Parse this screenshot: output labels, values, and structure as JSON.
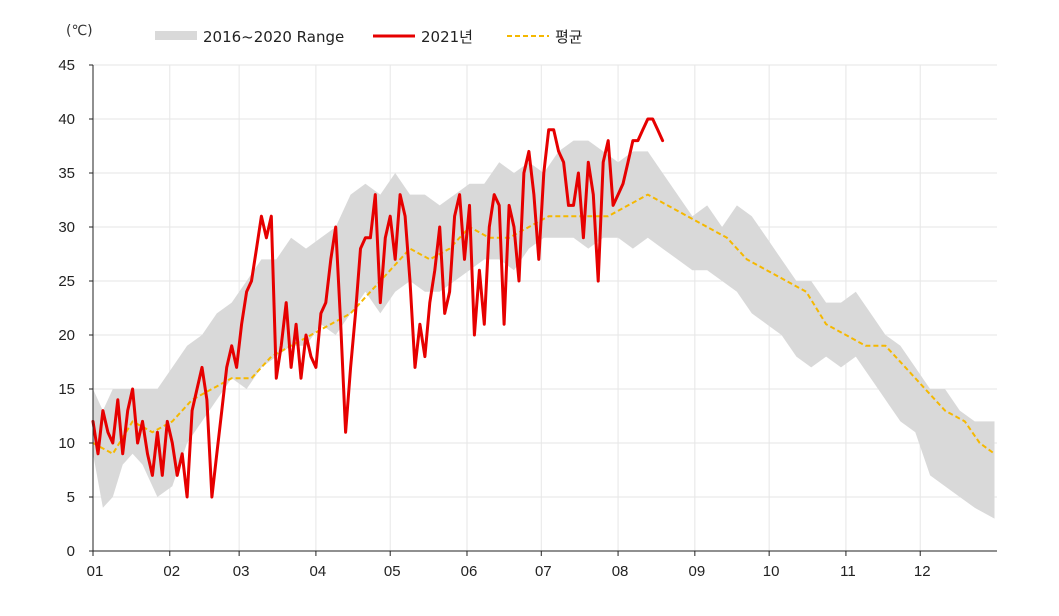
{
  "chart_data": {
    "type": "line",
    "unit": "(℃)",
    "grid": true,
    "legend_position": "top-left",
    "x_tick_labels": [
      "01",
      "02",
      "03",
      "04",
      "05",
      "06",
      "07",
      "08",
      "09",
      "10",
      "11",
      "12"
    ],
    "y_ticks": [
      0,
      5,
      10,
      15,
      20,
      25,
      30,
      35,
      40,
      45
    ],
    "ylim": [
      0,
      45
    ],
    "xlim": [
      0,
      365
    ],
    "colors": {
      "range": "#d9d9d9",
      "actual": "#e60000",
      "average": "#f5b800",
      "grid": "#e6e6e6",
      "axis": "#222222"
    },
    "series": [
      {
        "name": "2016~2020 Range",
        "kind": "band",
        "x": [
          0,
          4,
          8,
          12,
          16,
          20,
          26,
          32,
          38,
          44,
          50,
          56,
          62,
          68,
          74,
          80,
          86,
          92,
          98,
          104,
          110,
          116,
          122,
          128,
          134,
          140,
          146,
          152,
          158,
          164,
          170,
          176,
          182,
          188,
          194,
          200,
          206,
          212,
          218,
          224,
          230,
          236,
          242,
          248,
          254,
          260,
          266,
          272,
          278,
          284,
          290,
          296,
          302,
          308,
          314,
          320,
          326,
          332,
          338,
          344,
          350,
          356,
          364
        ],
        "low": [
          9,
          4,
          5,
          8,
          9,
          8,
          5,
          6,
          10,
          12,
          14,
          16,
          15,
          17,
          18,
          19,
          19,
          21,
          20,
          22,
          24,
          22,
          24,
          25,
          24,
          24,
          25,
          26,
          27,
          27,
          26,
          28,
          29,
          29,
          29,
          28,
          29,
          29,
          28,
          29,
          28,
          27,
          26,
          26,
          25,
          24,
          22,
          21,
          20,
          18,
          17,
          18,
          17,
          18,
          16,
          14,
          12,
          11,
          7,
          6,
          5,
          4,
          3
        ],
        "high": [
          15,
          13,
          15,
          15,
          15,
          15,
          15,
          17,
          19,
          20,
          22,
          23,
          25,
          27,
          27,
          29,
          28,
          29,
          30,
          33,
          34,
          33,
          35,
          33,
          33,
          32,
          33,
          34,
          34,
          36,
          35,
          36,
          35,
          37,
          38,
          38,
          37,
          36,
          37,
          37,
          35,
          33,
          31,
          32,
          30,
          32,
          31,
          29,
          27,
          25,
          25,
          23,
          23,
          24,
          22,
          20,
          19,
          17,
          15,
          15,
          13,
          12,
          12
        ]
      },
      {
        "name": "2021년",
        "kind": "line",
        "x": [
          0,
          2,
          4,
          6,
          8,
          10,
          12,
          14,
          16,
          18,
          20,
          22,
          24,
          26,
          28,
          30,
          32,
          34,
          36,
          38,
          40,
          42,
          44,
          46,
          48,
          50,
          52,
          54,
          56,
          58,
          60,
          62,
          64,
          66,
          68,
          70,
          72,
          74,
          76,
          78,
          80,
          82,
          84,
          86,
          88,
          90,
          92,
          94,
          96,
          98,
          100,
          102,
          104,
          106,
          108,
          110,
          112,
          114,
          116,
          118,
          120,
          122,
          124,
          126,
          128,
          130,
          132,
          134,
          136,
          138,
          140,
          142,
          144,
          146,
          148,
          150,
          152,
          154,
          156,
          158,
          160,
          162,
          164,
          166,
          168,
          170,
          172,
          174,
          176,
          178,
          180,
          182,
          184,
          186,
          188,
          190,
          192,
          194,
          196,
          198,
          200,
          202,
          204,
          206,
          208,
          210,
          212,
          214,
          216,
          218,
          220,
          222,
          224,
          226,
          228,
          230,
          232,
          234,
          236
        ],
        "y": [
          12,
          9,
          13,
          11,
          10,
          14,
          9,
          13,
          15,
          10,
          12,
          9,
          7,
          11,
          7,
          12,
          10,
          7,
          9,
          5,
          13,
          15,
          17,
          14,
          5,
          9,
          13,
          17,
          19,
          17,
          21,
          24,
          25,
          28,
          31,
          29,
          31,
          16,
          19,
          23,
          17,
          21,
          16,
          20,
          18,
          17,
          22,
          23,
          27,
          30,
          21,
          11,
          17,
          22,
          28,
          29,
          29,
          33,
          23,
          29,
          31,
          27,
          33,
          31,
          25,
          17,
          21,
          18,
          23,
          26,
          30,
          22,
          24,
          31,
          33,
          27,
          32,
          20,
          26,
          21,
          30,
          33,
          32,
          21,
          32,
          30,
          25,
          35,
          37,
          33,
          27,
          35,
          39,
          39,
          37,
          36,
          32,
          32,
          35,
          29,
          36,
          33,
          25,
          36,
          38,
          32,
          33,
          34,
          36,
          38,
          38,
          39,
          40,
          40,
          39,
          38,
          null,
          null,
          null
        ],
        "style": "solid"
      },
      {
        "name": "평균",
        "kind": "line",
        "x": [
          0,
          8,
          16,
          24,
          32,
          40,
          48,
          56,
          64,
          72,
          80,
          88,
          96,
          104,
          112,
          120,
          128,
          136,
          144,
          152,
          160,
          168,
          176,
          184,
          192,
          200,
          208,
          216,
          224,
          232,
          240,
          248,
          256,
          264,
          272,
          280,
          288,
          296,
          304,
          312,
          320,
          328,
          336,
          344,
          352,
          358,
          364
        ],
        "y": [
          10,
          9,
          12,
          11,
          12,
          14,
          15,
          16,
          16,
          18,
          19,
          20,
          21,
          22,
          24,
          26,
          28,
          27,
          28,
          30,
          29,
          29,
          30,
          31,
          31,
          31,
          31,
          32,
          33,
          32,
          31,
          30,
          29,
          27,
          26,
          25,
          24,
          21,
          20,
          19,
          19,
          17,
          15,
          13,
          12,
          10,
          9
        ],
        "style": "dashed"
      }
    ]
  }
}
